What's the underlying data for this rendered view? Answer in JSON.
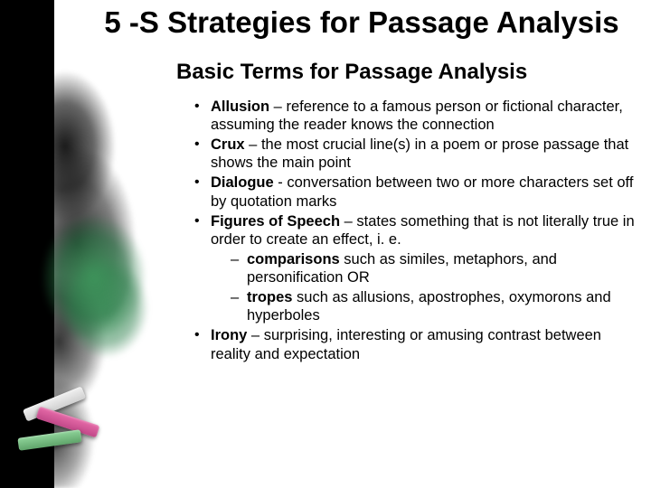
{
  "title": "5 -S Strategies for Passage Analysis",
  "subtitle": "Basic Terms for Passage Analysis",
  "terms": [
    {
      "name": "Allusion",
      "sep": " – ",
      "def": "reference to a famous person or fictional character, assuming the reader knows the connection"
    },
    {
      "name": "Crux",
      "sep": " – ",
      "def": "the most crucial line(s) in a poem or prose passage that shows the main point"
    },
    {
      "name": "Dialogue",
      "sep": " - ",
      "def": "conversation between two or more characters set off by quotation marks"
    },
    {
      "name": "Figures of Speech",
      "sep": " – ",
      "def": "states something that is not literally true in order to create an effect, i. e."
    },
    {
      "name": "Irony",
      "sep": " – ",
      "def": "surprising, interesting or amusing contrast between reality and expectation"
    }
  ],
  "subitems": [
    {
      "name": "comparisons",
      "rest": " such as similes, metaphors, and personification   OR"
    },
    {
      "name": "tropes",
      "rest": " such as allusions, apostrophes, oxymorons and hyperboles"
    }
  ],
  "colors": {
    "text": "#000000",
    "background": "#ffffff",
    "accent_green": "#4a9a63",
    "chalk_white": "#e8e8e8",
    "chalk_pink": "#d858a0",
    "chalk_green": "#7fc48a"
  }
}
